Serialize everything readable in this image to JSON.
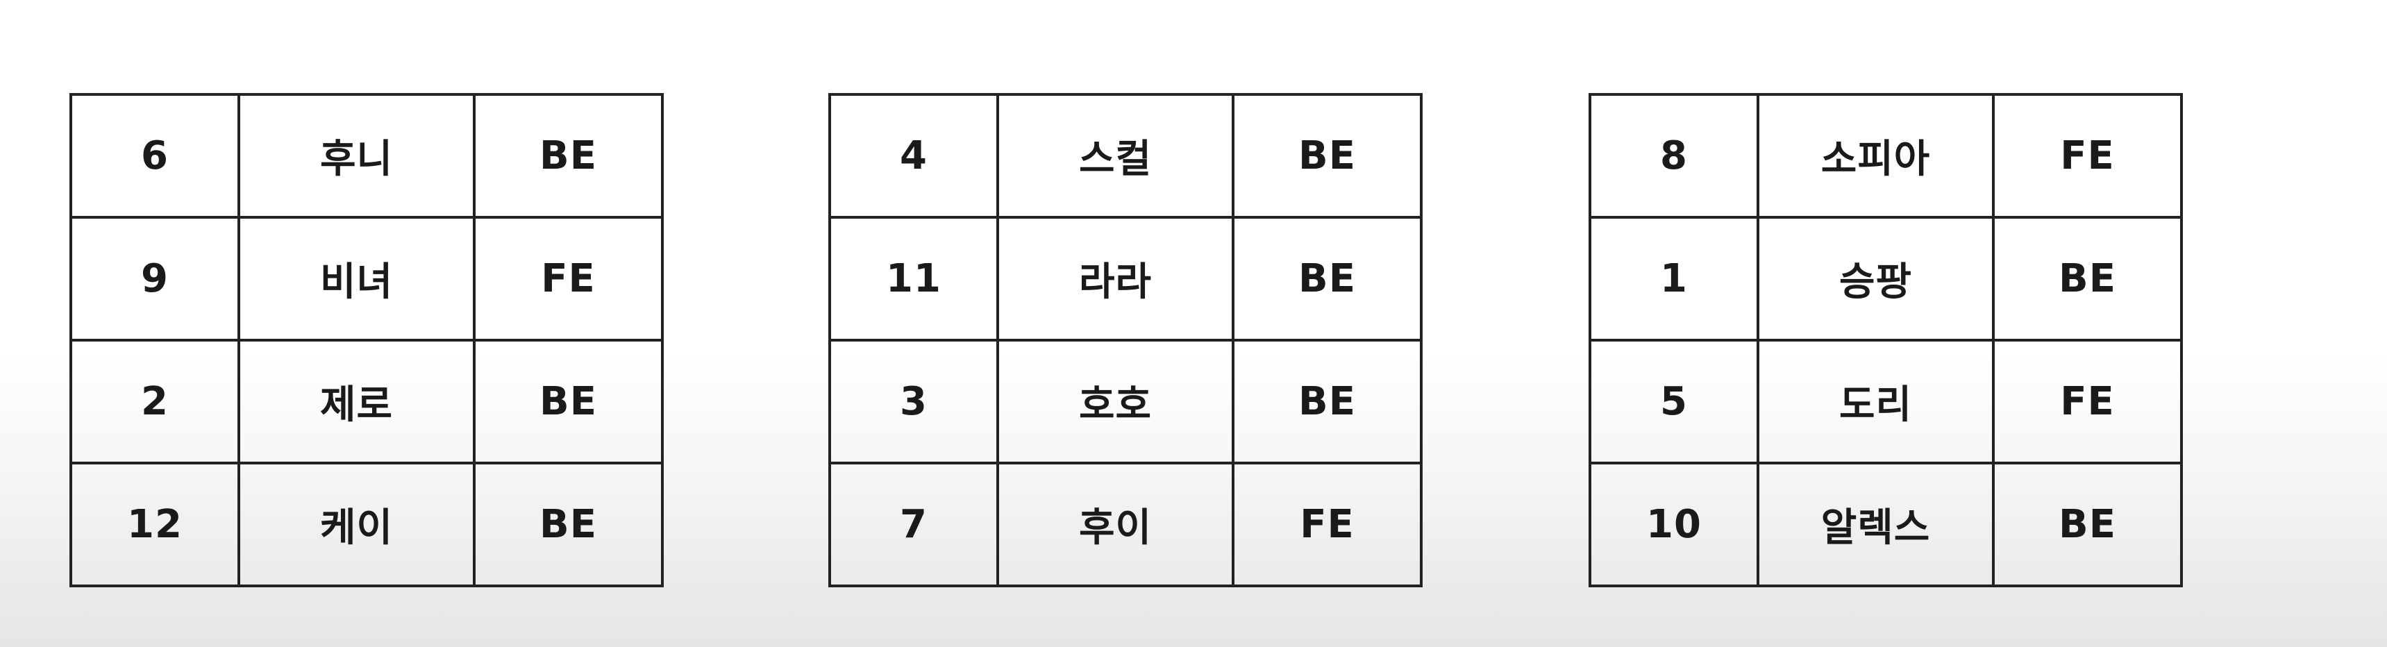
{
  "groups": [
    {
      "rows": [
        {
          "number": "6",
          "name": "후니",
          "role": "BE"
        },
        {
          "number": "9",
          "name": "비녀",
          "role": "FE"
        },
        {
          "number": "2",
          "name": "제로",
          "role": "BE"
        },
        {
          "number": "12",
          "name": "케이",
          "role": "BE"
        }
      ]
    },
    {
      "rows": [
        {
          "number": "4",
          "name": "스컬",
          "role": "BE"
        },
        {
          "number": "11",
          "name": "라라",
          "role": "BE"
        },
        {
          "number": "3",
          "name": "호호",
          "role": "BE"
        },
        {
          "number": "7",
          "name": "후이",
          "role": "FE"
        }
      ]
    },
    {
      "rows": [
        {
          "number": "8",
          "name": "소피아",
          "role": "FE"
        },
        {
          "number": "1",
          "name": "승팡",
          "role": "BE"
        },
        {
          "number": "5",
          "name": "도리",
          "role": "FE"
        },
        {
          "number": "10",
          "name": "알렉스",
          "role": "BE"
        }
      ]
    }
  ]
}
